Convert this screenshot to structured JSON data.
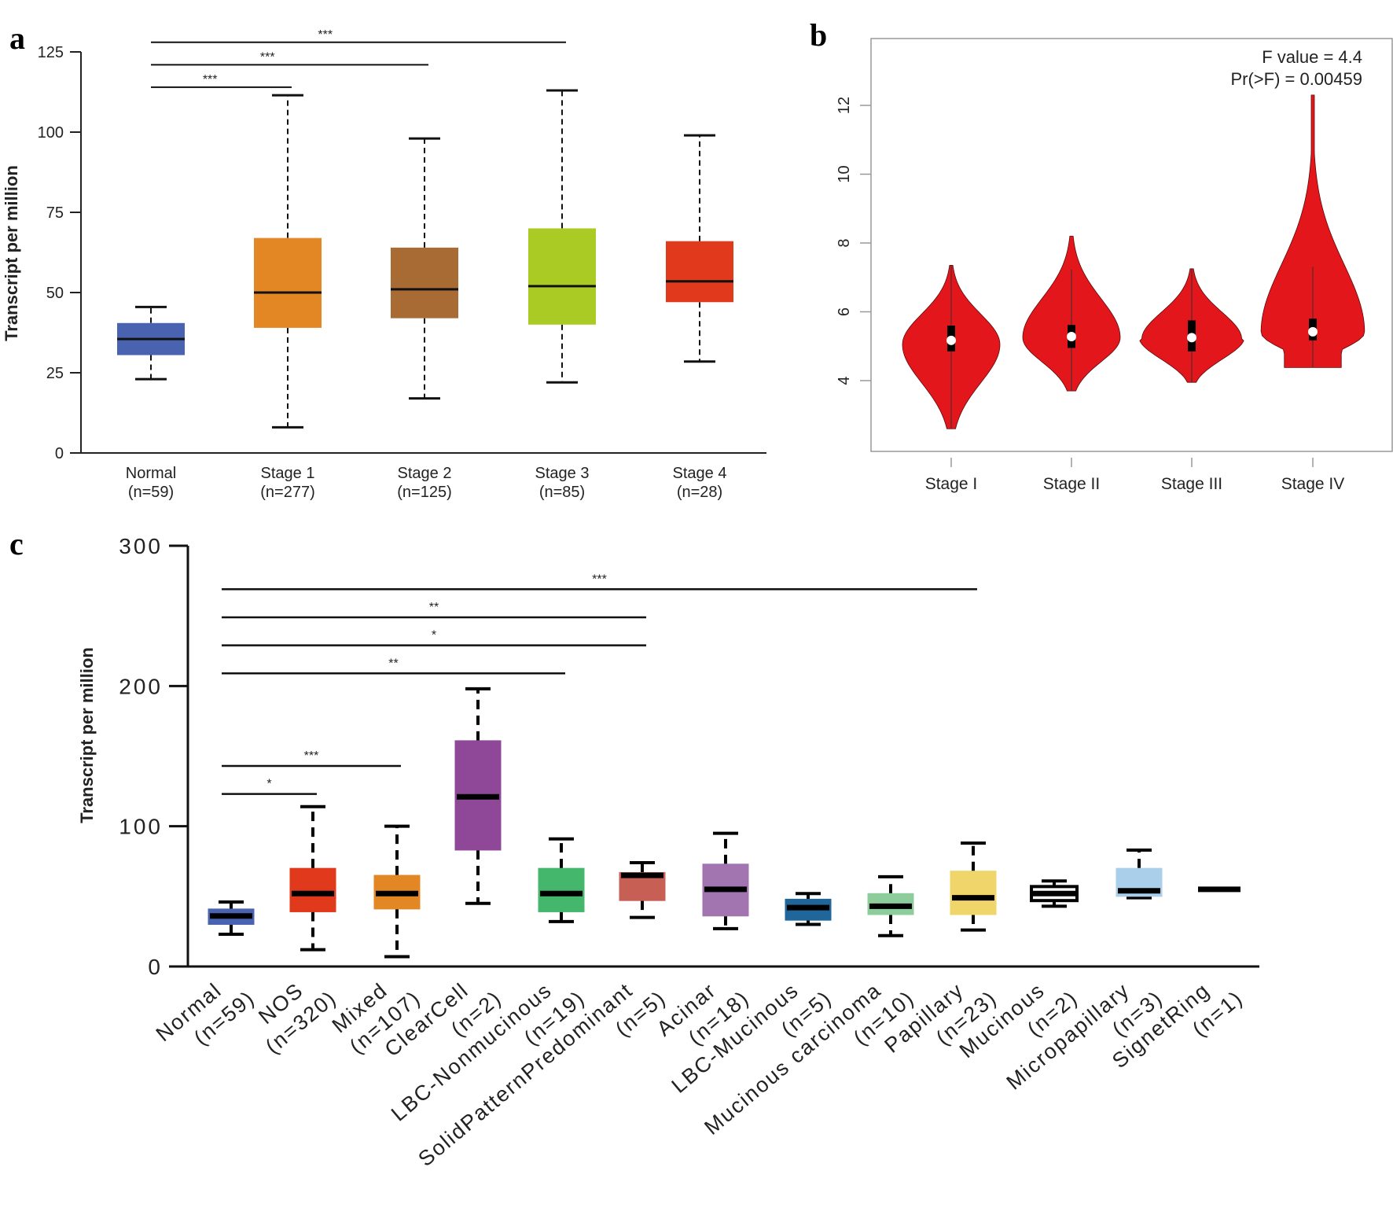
{
  "chart_data": [
    {
      "panel": "a",
      "type": "box",
      "title": "",
      "ylabel": "Transcript per million",
      "xlabel": "",
      "ylim": [
        0,
        125
      ],
      "yticks": [
        0,
        25,
        50,
        75,
        100,
        125
      ],
      "categories": [
        "Normal",
        "Stage 1",
        "Stage 2",
        "Stage 3",
        "Stage 4"
      ],
      "counts": [
        "(n=59)",
        "(n=277)",
        "(n=125)",
        "(n=85)",
        "(n=28)"
      ],
      "colors": [
        "#4a63b0",
        "#e38624",
        "#a86b34",
        "#a9cb24",
        "#e0391b"
      ],
      "boxes": [
        {
          "min": 23,
          "q1": 30.5,
          "median": 35.5,
          "q3": 40.5,
          "max": 45.5
        },
        {
          "min": 8,
          "q1": 39,
          "median": 50,
          "q3": 67,
          "max": 111.5
        },
        {
          "min": 17,
          "q1": 42,
          "median": 51,
          "q3": 64,
          "max": 98
        },
        {
          "min": 22,
          "q1": 40,
          "median": 52,
          "q3": 70,
          "max": 113
        },
        {
          "min": 28.5,
          "q1": 47,
          "median": 53.5,
          "q3": 66,
          "max": 99
        }
      ],
      "significance": [
        {
          "from": "Normal",
          "to": "Stage 1",
          "label": "***",
          "y": 114
        },
        {
          "from": "Normal",
          "to": "Stage 2",
          "label": "***",
          "y": 121
        },
        {
          "from": "Normal",
          "to": "Stage 3",
          "label": "***",
          "y": 128
        }
      ]
    },
    {
      "panel": "b",
      "type": "violin",
      "title": "",
      "ylabel": "",
      "xlabel": "",
      "ylim": [
        2.3,
        13.7
      ],
      "yticks": [
        4,
        6,
        8,
        10,
        12
      ],
      "categories": [
        "Stage I",
        "Stage II",
        "Stage III",
        "Stage IV"
      ],
      "color": "#e3161b",
      "annotation": [
        "F value = 4.4",
        "Pr(>F) = 0.00459"
      ],
      "violins": [
        {
          "min": 2.6,
          "max": 7.35,
          "q1": 4.85,
          "median": 5.17,
          "q3": 5.6,
          "mode": 5.05,
          "width": 0.8
        },
        {
          "min": 3.7,
          "max": 8.2,
          "q1": 4.95,
          "median": 5.28,
          "q3": 5.62,
          "mode": 5.25,
          "width": 0.8
        },
        {
          "min": 3.95,
          "max": 7.25,
          "q1": 4.85,
          "median": 5.25,
          "q3": 5.75,
          "mode": 5.2,
          "width": 0.82
        },
        {
          "min": 4.38,
          "max": 12.3,
          "q1": 5.17,
          "median": 5.42,
          "q3": 5.8,
          "mode": 5.4,
          "width": 0.85
        }
      ]
    },
    {
      "panel": "c",
      "type": "box",
      "title": "",
      "ylabel": "Transcript per million",
      "xlabel": "",
      "ylim": [
        0,
        300
      ],
      "yticks": [
        0,
        100,
        200,
        300
      ],
      "categories": [
        "Normal",
        "NOS",
        "Mixed",
        "ClearCell",
        "LBC-Nonmucinous",
        "SolidPatternPredominant",
        "Acinar",
        "LBC-Mucinous",
        "Mucinous carcinoma",
        "Papillary",
        "Mucinous",
        "Micropapillary",
        "SignetRing"
      ],
      "counts": [
        "(n=59)",
        "(n=320)",
        "(n=107)",
        "(n=2)",
        "(n=19)",
        "(n=5)",
        "(n=18)",
        "(n=5)",
        "(n=10)",
        "(n=23)",
        "(n=2)",
        "(n=3)",
        "(n=1)"
      ],
      "colors": [
        "#4a63b0",
        "#e0391b",
        "#e38624",
        "#8f4898",
        "#44b76d",
        "#c75f55",
        "#a275b1",
        "#20669b",
        "#8dcd9b",
        "#efd56a",
        "#222222",
        "#a9cfea",
        "#000000"
      ],
      "boxes": [
        {
          "min": 23,
          "q1": 30,
          "median": 36,
          "q3": 41,
          "max": 46
        },
        {
          "min": 12,
          "q1": 39,
          "median": 52,
          "q3": 70,
          "max": 114
        },
        {
          "min": 7,
          "q1": 41,
          "median": 52,
          "q3": 65,
          "max": 100
        },
        {
          "min": 45,
          "q1": 83,
          "median": 121,
          "q3": 161,
          "max": 198
        },
        {
          "min": 32,
          "q1": 39,
          "median": 52,
          "q3": 70,
          "max": 91
        },
        {
          "min": 35,
          "q1": 47,
          "median": 65,
          "q3": 67,
          "max": 74
        },
        {
          "min": 27,
          "q1": 36,
          "median": 55,
          "q3": 73,
          "max": 95
        },
        {
          "min": 30,
          "q1": 33,
          "median": 42,
          "q3": 48,
          "max": 52
        },
        {
          "min": 22,
          "q1": 37,
          "median": 43,
          "q3": 52,
          "max": 64
        },
        {
          "min": 26,
          "q1": 37,
          "median": 49,
          "q3": 68,
          "max": 88
        },
        {
          "min": 43,
          "q1": 47,
          "median": 52,
          "q3": 57,
          "max": 61
        },
        {
          "min": 49,
          "q1": 50,
          "median": 54,
          "q3": 70,
          "max": 83
        },
        {
          "min": 55,
          "q1": 55,
          "median": 55,
          "q3": 55,
          "max": 55
        }
      ],
      "significance": [
        {
          "from": "Normal",
          "to": "NOS",
          "label": "*",
          "y": 123
        },
        {
          "from": "Normal",
          "to": "Mixed",
          "label": "***",
          "y": 143
        },
        {
          "from": "Normal",
          "to": "LBC-Nonmucinous",
          "label": "**",
          "y": 209
        },
        {
          "from": "Normal",
          "to": "SolidPatternPredominant",
          "label": "*",
          "y": 229
        },
        {
          "from": "Normal",
          "to": "SolidPatternPredominant",
          "label": "**",
          "y": 249
        },
        {
          "from": "Normal",
          "to": "Papillary",
          "label": "***",
          "y": 269
        }
      ]
    }
  ],
  "panel_labels": [
    "a",
    "b",
    "c"
  ]
}
